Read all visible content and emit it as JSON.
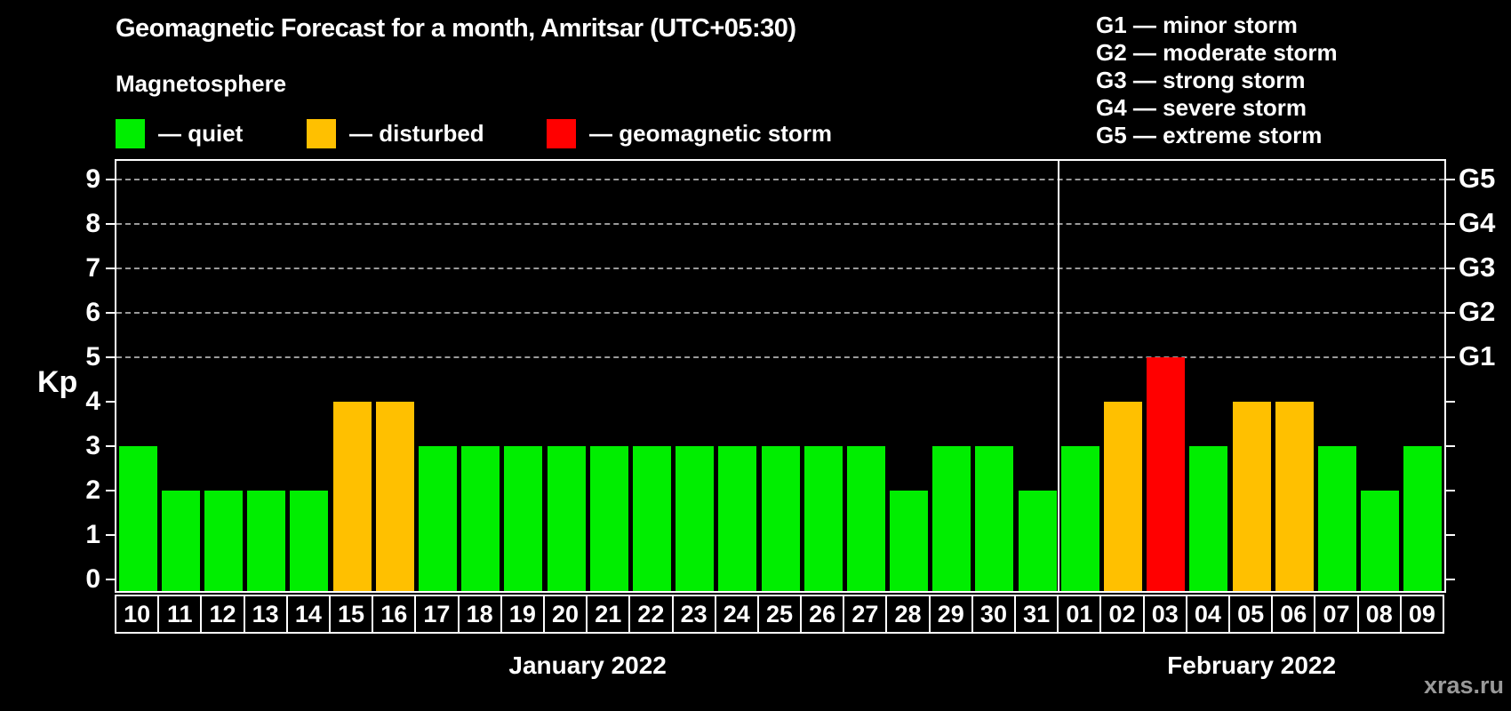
{
  "header": {
    "title": "Geomagnetic Forecast for a month, Amritsar (UTC+05:30)",
    "subtitle": "Magnetosphere"
  },
  "legend": {
    "items": [
      {
        "key": "quiet",
        "label": "— quiet",
        "color": "#00ee00"
      },
      {
        "key": "disturbed",
        "label": "— disturbed",
        "color": "#ffc000"
      },
      {
        "key": "storm",
        "label": "— geomagnetic storm",
        "color": "#ff0000"
      }
    ]
  },
  "g_legend": {
    "items": [
      "G1 — minor storm",
      "G2 — moderate storm",
      "G3 — strong storm",
      "G4 — severe storm",
      "G5 — extreme storm"
    ]
  },
  "watermark": "xras.ru",
  "chart_data": {
    "type": "bar",
    "title": "Geomagnetic Forecast for a month, Amritsar (UTC+05:30)",
    "ylabel": "Kp",
    "xlabel": "",
    "ylim": [
      0,
      9
    ],
    "y_ticks": [
      0,
      1,
      2,
      3,
      4,
      5,
      6,
      7,
      8,
      9
    ],
    "gridlines_at": [
      5,
      6,
      7,
      8,
      9
    ],
    "grid": "dashed horizontal at G-storm levels only",
    "right_axis_labels": [
      {
        "label": "G1",
        "kp": 5
      },
      {
        "label": "G2",
        "kp": 6
      },
      {
        "label": "G3",
        "kp": 7
      },
      {
        "label": "G4",
        "kp": 8
      },
      {
        "label": "G5",
        "kp": 9
      }
    ],
    "months": [
      {
        "label": "January 2022",
        "days": 22
      },
      {
        "label": "February 2022",
        "days": 9
      }
    ],
    "categories": [
      "10",
      "11",
      "12",
      "13",
      "14",
      "15",
      "16",
      "17",
      "18",
      "19",
      "20",
      "21",
      "22",
      "23",
      "24",
      "25",
      "26",
      "27",
      "28",
      "29",
      "30",
      "31",
      "01",
      "02",
      "03",
      "04",
      "05",
      "06",
      "07",
      "08",
      "09"
    ],
    "series": [
      {
        "name": "Kp forecast",
        "values": [
          3,
          2,
          2,
          2,
          2,
          4,
          4,
          3,
          3,
          3,
          3,
          3,
          3,
          3,
          3,
          3,
          3,
          3,
          2,
          3,
          3,
          2,
          3,
          4,
          5,
          3,
          4,
          4,
          3,
          2,
          3
        ]
      }
    ],
    "status_colors": {
      "quiet": "#00ee00",
      "disturbed": "#ffc000",
      "storm": "#ff0000"
    },
    "color_rule": {
      "quiet_max": 3,
      "disturbed_max": 4
    },
    "legend_position": "top"
  }
}
